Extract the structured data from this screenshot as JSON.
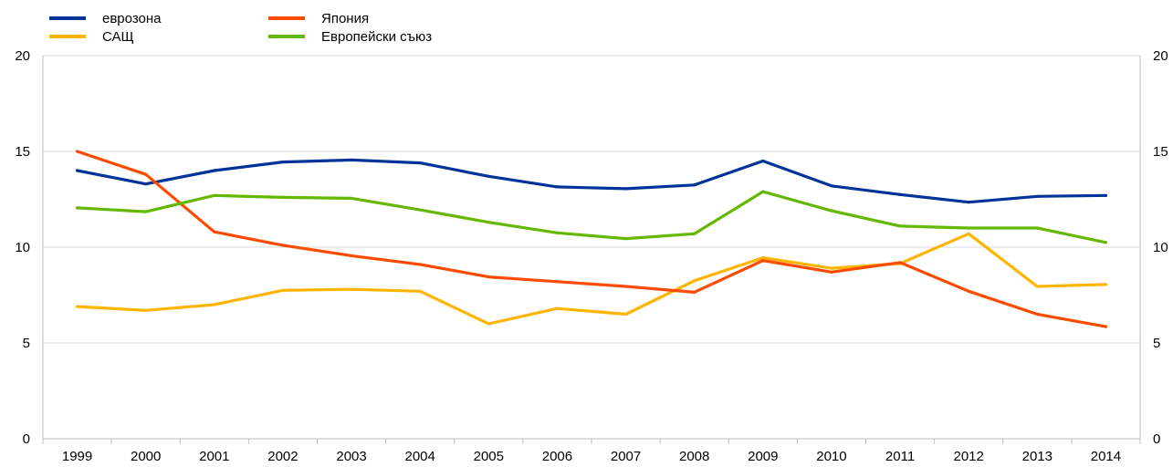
{
  "chart_data": {
    "type": "line",
    "categories": [
      "1999",
      "2000",
      "2001",
      "2002",
      "2003",
      "2004",
      "2005",
      "2006",
      "2007",
      "2008",
      "2009",
      "2010",
      "2011",
      "2012",
      "2013",
      "2014"
    ],
    "series": [
      {
        "name": "еврозона",
        "color": "#003399",
        "values": [
          14.0,
          13.3,
          14.0,
          14.45,
          14.55,
          14.4,
          13.7,
          13.15,
          13.05,
          13.25,
          14.5,
          13.2,
          12.75,
          12.35,
          12.65,
          12.7
        ]
      },
      {
        "name": "САЩ",
        "color": "#FFB400",
        "values": [
          6.9,
          6.7,
          7.0,
          7.75,
          7.8,
          7.7,
          6.0,
          6.8,
          6.5,
          8.25,
          9.45,
          8.9,
          9.15,
          10.7,
          7.95,
          8.05
        ]
      },
      {
        "name": "Япония",
        "color": "#FF4B00",
        "values": [
          15.0,
          13.8,
          10.8,
          10.1,
          9.55,
          9.1,
          8.45,
          8.2,
          7.95,
          7.65,
          9.3,
          8.7,
          9.2,
          7.7,
          6.5,
          5.85
        ]
      },
      {
        "name": "Европейски съюз",
        "color": "#65B800",
        "values": [
          12.05,
          11.85,
          12.7,
          12.6,
          12.55,
          11.95,
          11.3,
          10.75,
          10.45,
          10.7,
          12.9,
          11.9,
          11.1,
          11.0,
          11.0,
          10.25
        ]
      }
    ],
    "y_ticks": [
      "0",
      "5",
      "10",
      "15",
      "20"
    ],
    "ylim": [
      0,
      20
    ],
    "grid": true,
    "legend_position": "top-left",
    "title": "",
    "xlabel": "",
    "ylabel": ""
  }
}
